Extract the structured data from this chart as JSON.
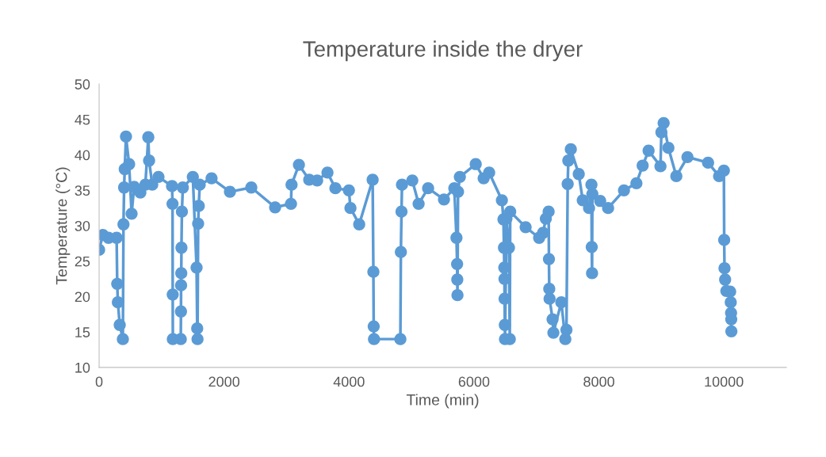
{
  "chart_data": {
    "type": "line",
    "title": "Temperature inside the dryer",
    "xlabel": "Time (min)",
    "ylabel": "Temperature (°C)",
    "xlim": [
      0,
      11000
    ],
    "xticks": [
      0,
      2000,
      4000,
      6000,
      8000,
      10000
    ],
    "ylim": [
      10,
      50
    ],
    "yticks": [
      10,
      15,
      20,
      25,
      30,
      35,
      40,
      45,
      50
    ],
    "grid": false,
    "legend": false,
    "marker": "circle",
    "line_style": "solid",
    "series": [
      {
        "color": "#5b9bd5",
        "x": [
          0,
          60,
          150,
          280,
          290,
          300,
          330,
          380,
          390,
          400,
          410,
          430,
          480,
          520,
          560,
          660,
          740,
          787,
          800,
          850,
          950,
          1167,
          1175,
          1178,
          1180,
          1307,
          1310,
          1312,
          1315,
          1318,
          1325,
          1340,
          1500,
          1560,
          1570,
          1575,
          1585,
          1595,
          1610,
          1800,
          2094,
          2436,
          2817,
          3071,
          3080,
          3198,
          3363,
          3490,
          3655,
          3782,
          3998,
          4023,
          4163,
          4378,
          4390,
          4395,
          4400,
          4822,
          4830,
          4840,
          4848,
          5013,
          5114,
          5266,
          5520,
          5685,
          5720,
          5730,
          5733,
          5736,
          5745,
          5774,
          6028,
          6155,
          6243,
          6447,
          6472,
          6480,
          6485,
          6488,
          6490,
          6494,
          6497,
          6520,
          6560,
          6573,
          6580,
          6827,
          7043,
          7106,
          7150,
          7195,
          7200,
          7205,
          7210,
          7258,
          7271,
          7398,
          7462,
          7480,
          7500,
          7510,
          7550,
          7677,
          7741,
          7842,
          7880,
          7885,
          7890,
          7895,
          8020,
          8147,
          8401,
          8600,
          8700,
          8795,
          8985,
          9000,
          9036,
          9112,
          9239,
          9417,
          9747,
          9924,
          10000,
          10005,
          10010,
          10020,
          10040,
          10100,
          10110,
          10115,
          10118,
          10120
        ],
        "values": [
          26.6,
          28.7,
          28.3,
          28.3,
          21.8,
          19.2,
          16,
          14,
          30.2,
          35.4,
          38,
          42.6,
          38.7,
          31.7,
          35.5,
          34.7,
          35.8,
          42.5,
          39.2,
          35.8,
          36.9,
          35.6,
          33.1,
          20.3,
          14,
          14,
          17.9,
          21.6,
          23.3,
          26.9,
          32,
          35.4,
          36.9,
          24.1,
          15.5,
          14,
          30.3,
          32.8,
          35.8,
          36.7,
          34.8,
          35.4,
          32.6,
          33.1,
          35.8,
          38.6,
          36.5,
          36.4,
          37.5,
          35.3,
          35,
          32.5,
          30.2,
          36.5,
          23.5,
          15.8,
          14,
          14,
          26.3,
          32,
          35.8,
          36.4,
          33.1,
          35.3,
          33.7,
          35.3,
          28.3,
          24.6,
          22.4,
          20.2,
          34.8,
          36.9,
          38.7,
          36.7,
          37.5,
          33.6,
          30.9,
          26.9,
          24.1,
          22.5,
          19.7,
          16,
          14,
          31,
          26.9,
          14,
          32,
          29.8,
          28.3,
          29,
          31,
          32,
          25.3,
          21.1,
          19.7,
          16.8,
          14.9,
          19.2,
          14,
          15.3,
          35.9,
          39.2,
          40.8,
          37.3,
          33.6,
          32.5,
          35.8,
          27,
          23.3,
          34.5,
          33.5,
          32.5,
          35,
          36,
          38.5,
          40.6,
          38.4,
          43.2,
          44.5,
          41,
          37,
          39.7,
          38.9,
          37,
          37.8,
          28,
          24,
          22.4,
          20.8,
          20.7,
          19.2,
          17.7,
          16.8,
          15.1
        ]
      }
    ]
  }
}
